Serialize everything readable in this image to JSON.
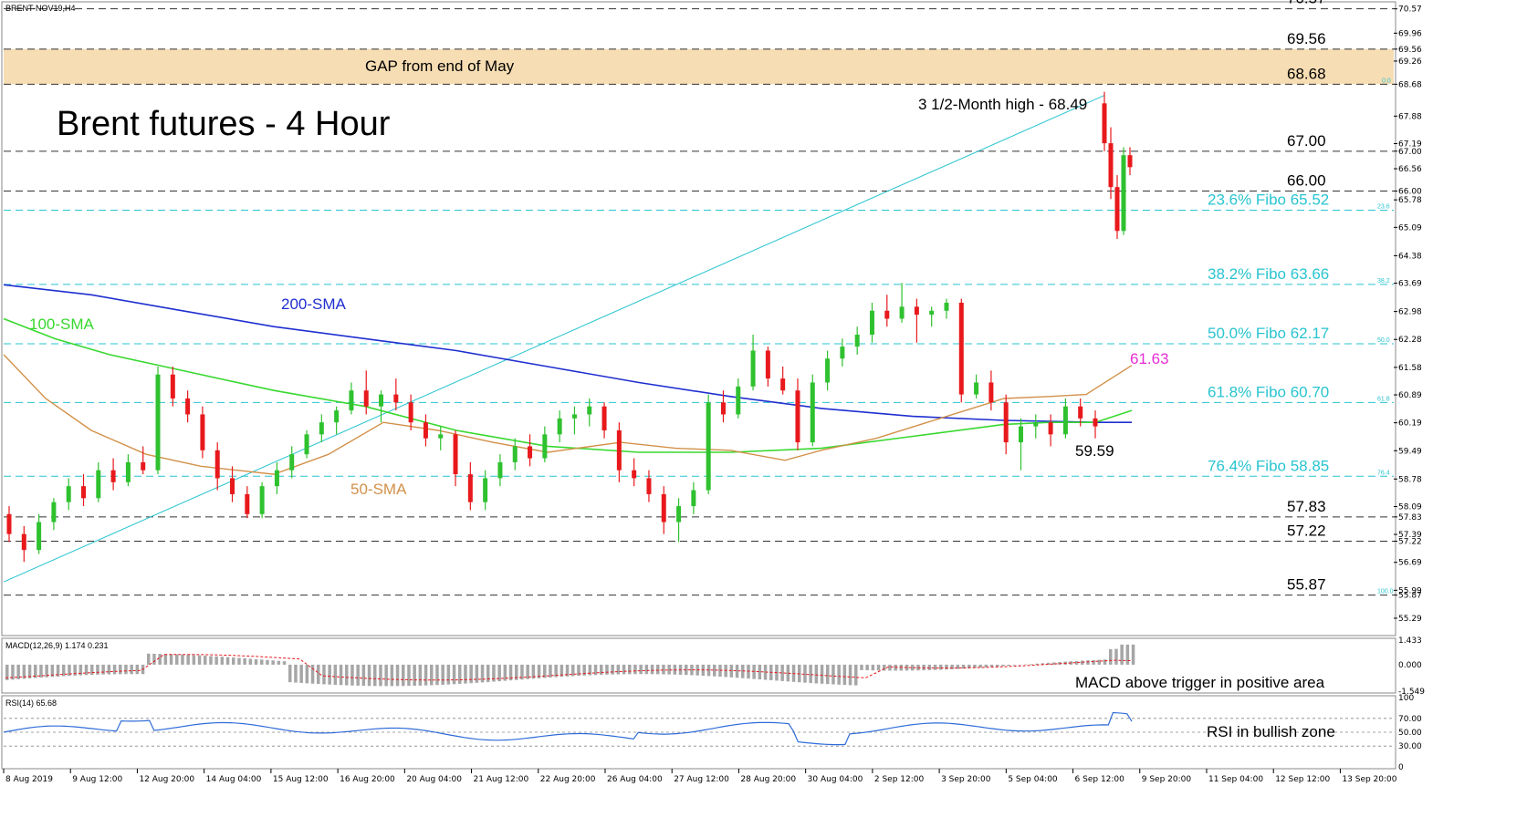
{
  "symbol_label": "BRENT-NOV19,H4",
  "main_title": "Brent futures - 4 Hour",
  "gap_label": "GAP from end of May",
  "high_note": "3 1/2-Month high - 68.49",
  "sma_labels": {
    "sma200": "200-SMA",
    "sma100": "100-SMA",
    "sma50": "50-SMA"
  },
  "sma_value_label": "61.63",
  "low_label": "59.59",
  "macd_label": "MACD(12,26,9) 1.174 0.231",
  "macd_note": "MACD above trigger in positive area",
  "rsi_label": "RSI(14) 65.68",
  "rsi_note": "RSI in bullish zone",
  "colors": {
    "bull": "#2fc12f",
    "bear": "#e8191c",
    "sma200": "#1f2fd0",
    "sma100": "#38d82f",
    "sma50": "#d2914a",
    "fibo": "#29c4d0",
    "gap": "#f7ddb3",
    "pink": "#e62fd4",
    "macd_hist": "#a6a6a6",
    "macd_signal": "#e8191c",
    "rsi": "#2f6cd8"
  },
  "chart_data": {
    "type": "candlestick",
    "ylim": [
      54.9,
      70.7
    ],
    "price_ticks": [
      "70.57",
      "69.96",
      "69.56",
      "69.26",
      "68.68",
      "67.88",
      "67.19",
      "67.00",
      "66.56",
      "66.00",
      "65.78",
      "65.09",
      "64.38",
      "63.69",
      "62.98",
      "62.28",
      "61.58",
      "60.89",
      "60.19",
      "59.49",
      "58.78",
      "58.09",
      "57.83",
      "57.39",
      "57.22",
      "56.69",
      "55.99",
      "55.87",
      "55.29"
    ],
    "x_labels": [
      "8 Aug 2019",
      "9 Aug 12:00",
      "12 Aug 20:00",
      "14 Aug 04:00",
      "15 Aug 12:00",
      "16 Aug 20:00",
      "20 Aug 04:00",
      "21 Aug 12:00",
      "22 Aug 20:00",
      "26 Aug 04:00",
      "27 Aug 12:00",
      "28 Aug 20:00",
      "30 Aug 04:00",
      "2 Sep 12:00",
      "3 Sep 20:00",
      "5 Sep 04:00",
      "6 Sep 12:00",
      "9 Sep 20:00",
      "11 Sep 04:00",
      "12 Sep 12:00",
      "13 Sep 20:00"
    ],
    "levels": [
      {
        "value": 70.57,
        "label": "70.57",
        "style": "gray"
      },
      {
        "value": 69.56,
        "label": "69.56",
        "style": "gray"
      },
      {
        "value": 68.68,
        "label": "68.68",
        "style": "gray"
      },
      {
        "value": 67.0,
        "label": "67.00",
        "style": "gray"
      },
      {
        "value": 66.0,
        "label": "66.00",
        "style": "gray"
      },
      {
        "value": 65.52,
        "label": "23.6% Fibo 65.52",
        "style": "fibo",
        "tag": "23.6"
      },
      {
        "value": 63.66,
        "label": "38.2% Fibo 63.66",
        "style": "fibo",
        "tag": "38.2"
      },
      {
        "value": 62.17,
        "label": "50.0% Fibo 62.17",
        "style": "fibo",
        "tag": "50.0"
      },
      {
        "value": 60.7,
        "label": "61.8% Fibo 60.70",
        "style": "fibo",
        "tag": "61.8"
      },
      {
        "value": 58.85,
        "label": "76.4% Fibo 58.85",
        "style": "fibo",
        "tag": "76.4"
      },
      {
        "value": 57.83,
        "label": "57.83",
        "style": "gray"
      },
      {
        "value": 57.22,
        "label": "57.22",
        "style": "gray"
      },
      {
        "value": 55.87,
        "label": "55.87",
        "style": "gray",
        "tag": "100.0"
      }
    ],
    "fibo_top_tag": "0.0",
    "gap_zone": [
      68.68,
      69.56
    ],
    "price_path": [
      [
        0,
        57.9
      ],
      [
        6,
        57.0
      ],
      [
        10,
        58.2
      ],
      [
        14,
        58.6
      ],
      [
        18,
        59.0
      ],
      [
        22,
        59.6
      ],
      [
        26,
        60.8
      ],
      [
        30,
        61.0
      ],
      [
        34,
        60.1
      ],
      [
        38,
        59.3
      ],
      [
        42,
        58.8
      ],
      [
        46,
        57.8
      ],
      [
        50,
        58.7
      ],
      [
        54,
        59.5
      ],
      [
        58,
        59.9
      ],
      [
        62,
        60.4
      ],
      [
        66,
        60.6
      ],
      [
        70,
        60.3
      ],
      [
        74,
        59.9
      ],
      [
        78,
        60.2
      ],
      [
        82,
        59.1
      ],
      [
        86,
        58.3
      ],
      [
        90,
        58.9
      ],
      [
        94,
        59.1
      ],
      [
        98,
        60.0
      ],
      [
        102,
        59.6
      ],
      [
        106,
        60.1
      ],
      [
        110,
        60.3
      ],
      [
        114,
        59.9
      ],
      [
        118,
        59.7
      ],
      [
        122,
        58.9
      ],
      [
        126,
        58.2
      ],
      [
        130,
        58.9
      ],
      [
        134,
        59.6
      ],
      [
        138,
        60.1
      ],
      [
        142,
        62.2
      ],
      [
        146,
        63.0
      ],
      [
        150,
        62.0
      ],
      [
        154,
        61.0
      ],
      [
        158,
        62.3
      ],
      [
        162,
        63.5
      ],
      [
        166,
        63.1
      ],
      [
        170,
        61.4
      ],
      [
        174,
        61.3
      ],
      [
        178,
        60.9
      ],
      [
        182,
        60.6
      ],
      [
        186,
        59.7
      ],
      [
        190,
        61.1
      ],
      [
        194,
        62.0
      ],
      [
        198,
        62.8
      ]
    ],
    "ohlc_sample": [
      [
        57.9,
        58.1,
        57.2,
        57.4
      ],
      [
        57.4,
        57.6,
        56.7,
        57.0
      ],
      [
        57.0,
        57.9,
        56.9,
        57.7
      ],
      [
        57.7,
        58.3,
        57.5,
        58.2
      ],
      [
        58.2,
        58.8,
        58.0,
        58.6
      ],
      [
        58.6,
        58.9,
        58.1,
        58.3
      ],
      [
        58.3,
        59.2,
        58.2,
        59.0
      ],
      [
        59.0,
        59.3,
        58.5,
        58.7
      ],
      [
        58.7,
        59.4,
        58.6,
        59.2
      ],
      [
        59.2,
        59.6,
        58.9,
        59.0
      ],
      [
        59.0,
        61.6,
        58.9,
        61.4
      ],
      [
        61.4,
        61.6,
        60.6,
        60.8
      ],
      [
        60.8,
        61.0,
        60.2,
        60.4
      ],
      [
        60.4,
        60.6,
        59.3,
        59.5
      ],
      [
        59.5,
        59.7,
        58.5,
        58.8
      ],
      [
        58.8,
        59.1,
        58.2,
        58.4
      ],
      [
        58.4,
        58.6,
        57.8,
        57.9
      ],
      [
        57.9,
        58.7,
        57.8,
        58.6
      ],
      [
        58.6,
        59.2,
        58.4,
        59.0
      ],
      [
        59.0,
        59.6,
        58.8,
        59.4
      ],
      [
        59.4,
        60.0,
        59.3,
        59.9
      ],
      [
        59.9,
        60.4,
        59.7,
        60.2
      ],
      [
        60.2,
        60.6,
        59.9,
        60.5
      ],
      [
        60.5,
        61.2,
        60.4,
        61.0
      ],
      [
        61.0,
        61.5,
        60.4,
        60.6
      ],
      [
        60.6,
        61.0,
        60.2,
        60.9
      ],
      [
        60.9,
        61.3,
        60.5,
        60.7
      ],
      [
        60.7,
        60.9,
        60.0,
        60.2
      ],
      [
        60.2,
        60.4,
        59.6,
        59.8
      ],
      [
        59.8,
        60.1,
        59.5,
        59.9
      ],
      [
        59.9,
        60.0,
        58.6,
        58.9
      ],
      [
        58.9,
        59.2,
        58.0,
        58.2
      ],
      [
        58.2,
        59.0,
        58.0,
        58.8
      ],
      [
        58.8,
        59.4,
        58.6,
        59.2
      ],
      [
        59.2,
        59.8,
        59.0,
        59.6
      ],
      [
        59.6,
        59.9,
        59.1,
        59.3
      ],
      [
        59.3,
        60.1,
        59.2,
        59.9
      ],
      [
        59.9,
        60.5,
        59.7,
        60.3
      ],
      [
        60.3,
        60.6,
        59.9,
        60.4
      ],
      [
        60.4,
        60.8,
        60.1,
        60.6
      ],
      [
        60.6,
        60.7,
        59.8,
        60.0
      ],
      [
        60.0,
        60.2,
        58.7,
        59.0
      ],
      [
        59.0,
        59.3,
        58.6,
        58.8
      ],
      [
        58.8,
        59.0,
        58.2,
        58.4
      ],
      [
        58.4,
        58.6,
        57.4,
        57.7
      ],
      [
        57.7,
        58.3,
        57.2,
        58.1
      ],
      [
        58.1,
        58.7,
        57.9,
        58.5
      ],
      [
        58.5,
        60.9,
        58.4,
        60.7
      ],
      [
        60.7,
        61.0,
        60.2,
        60.4
      ],
      [
        60.4,
        61.3,
        60.3,
        61.1
      ],
      [
        61.1,
        62.4,
        61.0,
        62.0
      ],
      [
        62.0,
        62.1,
        61.1,
        61.3
      ],
      [
        61.3,
        61.6,
        60.9,
        61.0
      ],
      [
        61.0,
        61.3,
        59.5,
        59.7
      ],
      [
        59.7,
        61.4,
        59.6,
        61.2
      ],
      [
        61.2,
        62.0,
        61.0,
        61.8
      ],
      [
        61.8,
        62.3,
        61.6,
        62.1
      ],
      [
        62.1,
        62.6,
        61.9,
        62.4
      ],
      [
        62.4,
        63.2,
        62.2,
        63.0
      ],
      [
        63.0,
        63.4,
        62.6,
        62.8
      ],
      [
        62.8,
        63.7,
        62.7,
        63.1
      ],
      [
        63.1,
        63.3,
        62.2,
        62.9
      ],
      [
        62.9,
        63.1,
        62.6,
        63.0
      ],
      [
        63.0,
        63.3,
        62.8,
        63.2
      ],
      [
        63.2,
        63.3,
        60.7,
        60.9
      ],
      [
        60.9,
        61.4,
        60.8,
        61.2
      ],
      [
        61.2,
        61.5,
        60.5,
        60.7
      ],
      [
        60.7,
        60.9,
        59.4,
        59.7
      ],
      [
        59.7,
        60.3,
        59.0,
        60.1
      ],
      [
        60.1,
        60.4,
        59.8,
        60.2
      ],
      [
        60.2,
        60.4,
        59.6,
        59.9
      ],
      [
        59.9,
        60.8,
        59.8,
        60.6
      ],
      [
        60.6,
        60.8,
        60.1,
        60.3
      ],
      [
        60.3,
        60.5,
        59.8,
        60.1
      ]
    ],
    "final_candles": [
      [
        68.2,
        68.49,
        67.0,
        67.2
      ],
      [
        67.2,
        67.6,
        65.8,
        66.1
      ],
      [
        66.1,
        66.4,
        64.8,
        65.0
      ],
      [
        65.0,
        67.1,
        64.9,
        66.9
      ],
      [
        66.9,
        67.1,
        66.4,
        66.6
      ]
    ],
    "sma200_last": 60.2,
    "sma100_last": 60.5,
    "sma50_last": 61.63,
    "macd": {
      "value": 1.174,
      "signal": 0.231,
      "ylim": [
        -1.549,
        1.433
      ],
      "ticks": [
        "1.433",
        "0.000",
        "-1.549"
      ]
    },
    "rsi": {
      "value": 65.68,
      "ylim": [
        0,
        100
      ],
      "ticks": [
        "100",
        "70.00",
        "50.00",
        "30.00",
        "0"
      ]
    }
  }
}
